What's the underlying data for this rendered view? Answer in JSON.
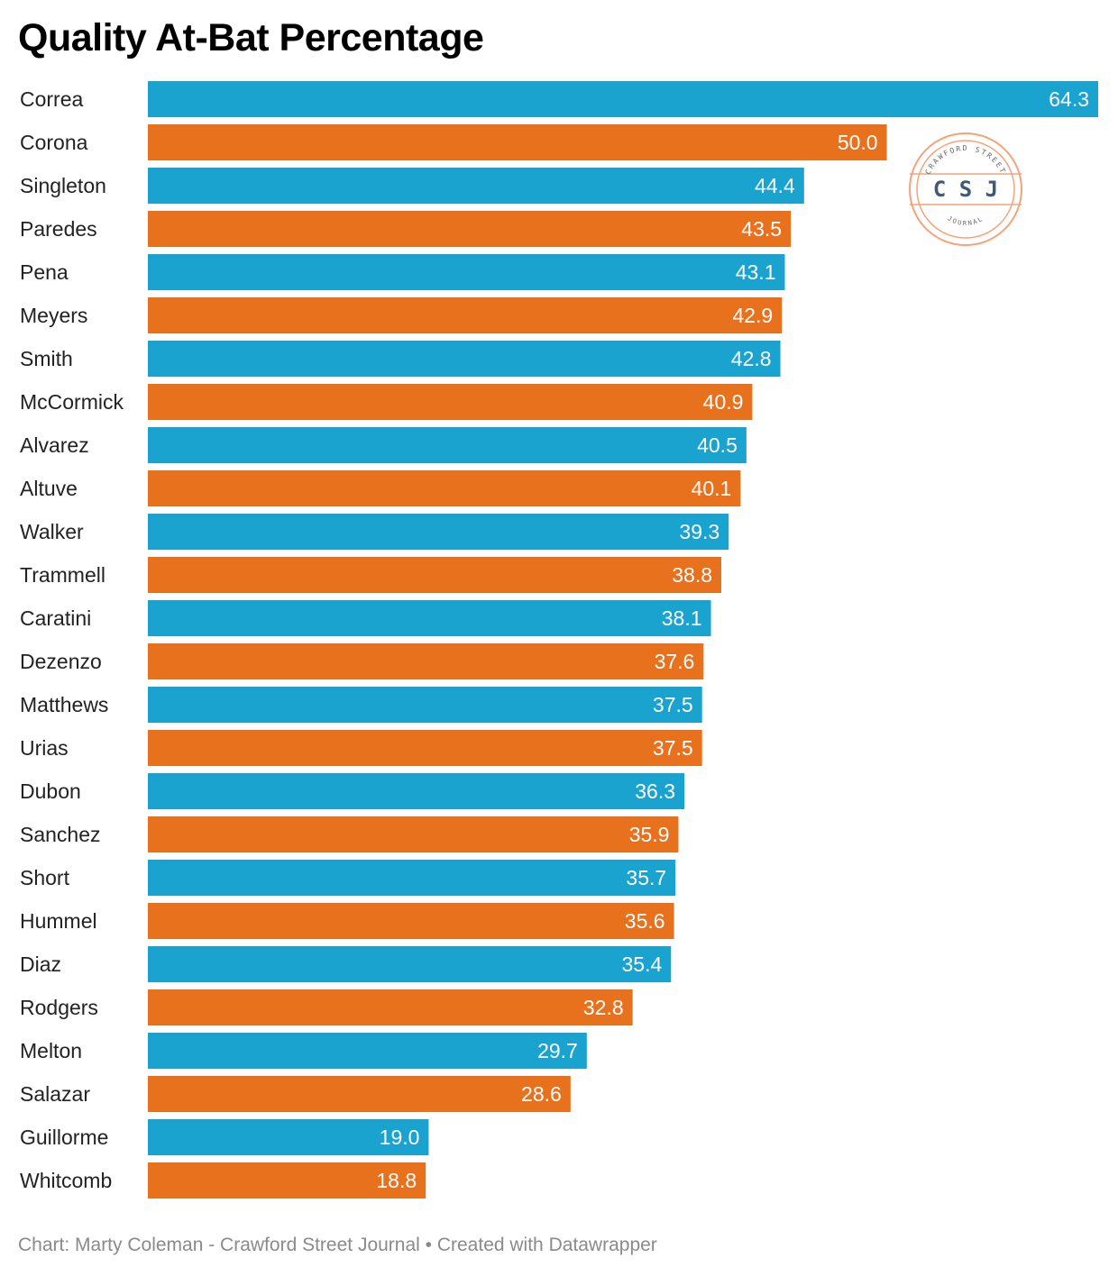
{
  "title": "Quality At-Bat Percentage",
  "footer": "Chart: Marty Coleman - Crawford Street Journal • Created with Datawrapper",
  "logo": {
    "initials": "C S J",
    "top_text": "CRAWFORD STREET",
    "bottom_text": "JOURNAL",
    "color": "#f2a47a"
  },
  "colors": {
    "blue": "#1aa3cf",
    "orange": "#e8711e"
  },
  "chart_data": {
    "type": "bar",
    "orientation": "horizontal",
    "title": "Quality At-Bat Percentage",
    "categories": [
      "Correa",
      "Corona",
      "Singleton",
      "Paredes",
      "Pena",
      "Meyers",
      "Smith",
      "McCormick",
      "Alvarez",
      "Altuve",
      "Walker",
      "Trammell",
      "Caratini",
      "Dezenzo",
      "Matthews",
      "Urias",
      "Dubon",
      "Sanchez",
      "Short",
      "Hummel",
      "Diaz",
      "Rodgers",
      "Melton",
      "Salazar",
      "Guillorme",
      "Whitcomb"
    ],
    "values": [
      64.3,
      50.0,
      44.4,
      43.5,
      43.1,
      42.9,
      42.8,
      40.9,
      40.5,
      40.1,
      39.3,
      38.8,
      38.1,
      37.6,
      37.5,
      37.5,
      36.3,
      35.9,
      35.7,
      35.6,
      35.4,
      32.8,
      29.7,
      28.6,
      19.0,
      18.8
    ],
    "labels": [
      "64.3",
      "50.0",
      "44.4",
      "43.5",
      "43.1",
      "42.9",
      "42.8",
      "40.9",
      "40.5",
      "40.1",
      "39.3",
      "38.8",
      "38.1",
      "37.6",
      "37.5",
      "37.5",
      "36.3",
      "35.9",
      "35.7",
      "35.6",
      "35.4",
      "32.8",
      "29.7",
      "28.6",
      "19.0",
      "18.8"
    ],
    "bar_colors": [
      "#1aa3cf",
      "#e8711e"
    ],
    "xlim": [
      0,
      64.3
    ],
    "grid": false,
    "legend": "none"
  }
}
